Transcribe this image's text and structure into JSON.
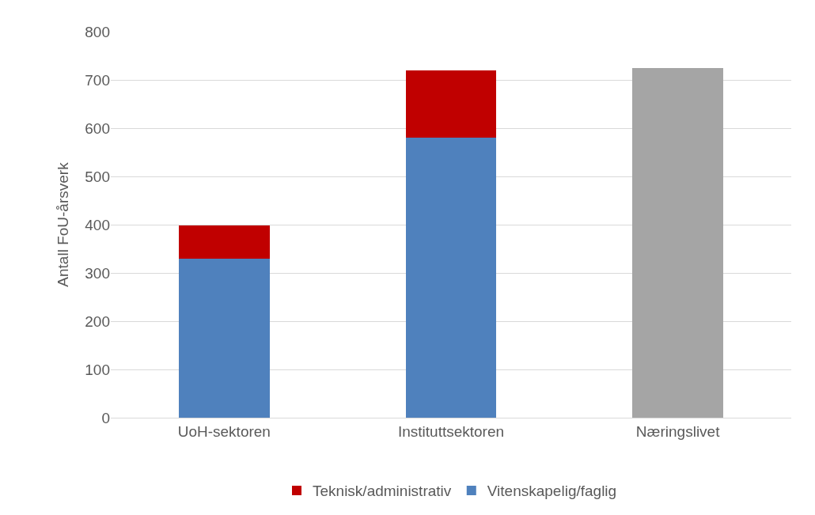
{
  "chart_data": {
    "type": "bar",
    "stacked": true,
    "ylabel": "Antall FoU-årsverk",
    "categories": [
      "UoH-sektoren",
      "Instituttsektoren",
      "Næringslivet"
    ],
    "series": [
      {
        "name": "Vitenskapelig/faglig",
        "color": "#4f81bd",
        "values": [
          330,
          581,
          null
        ]
      },
      {
        "name": "Teknisk/administrativ",
        "color": "#c00000",
        "values": [
          68,
          139,
          null
        ]
      },
      {
        "color": "#a5a5a5",
        "values": [
          null,
          null,
          725
        ]
      }
    ],
    "ylim": [
      0,
      800
    ],
    "yticks": [
      0,
      100,
      200,
      300,
      400,
      500,
      600,
      700,
      800
    ],
    "grid": "y",
    "legend": "bottom"
  }
}
